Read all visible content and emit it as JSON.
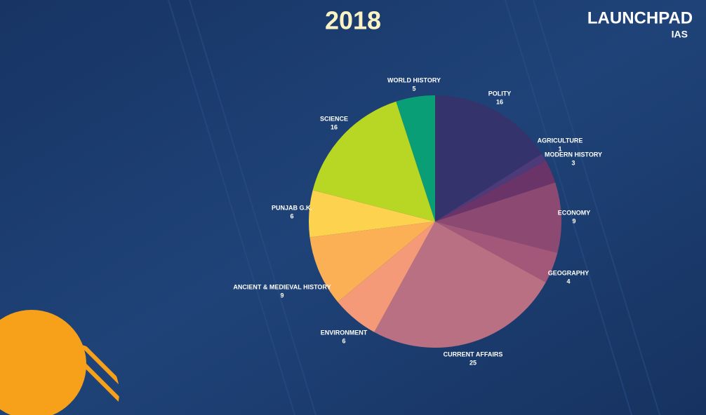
{
  "logo": {
    "name": "LAUNCHPAD",
    "sub": "IAS"
  },
  "chart_data": {
    "type": "pie",
    "title": "2018",
    "categories": [
      "POLITY",
      "AGRICULTURE",
      "MODERN HISTORY",
      "ECONOMY",
      "GEOGRAPHY",
      "CURRENT AFFAIRS",
      "ENVIRONMENT",
      "ANCIENT & MEDIEVAL HISTORY",
      "PUNJAB G.K.",
      "SCIENCE",
      "WORLD HISTORY"
    ],
    "values": [
      16,
      1,
      3,
      9,
      4,
      25,
      6,
      9,
      6,
      16,
      5
    ],
    "colors": [
      "#35336b",
      "#4d3a78",
      "#6b3468",
      "#8c4a72",
      "#a3587a",
      "#b87082",
      "#f49a78",
      "#fbb055",
      "#fdd24e",
      "#b8d624",
      "#0a9e76"
    ]
  }
}
